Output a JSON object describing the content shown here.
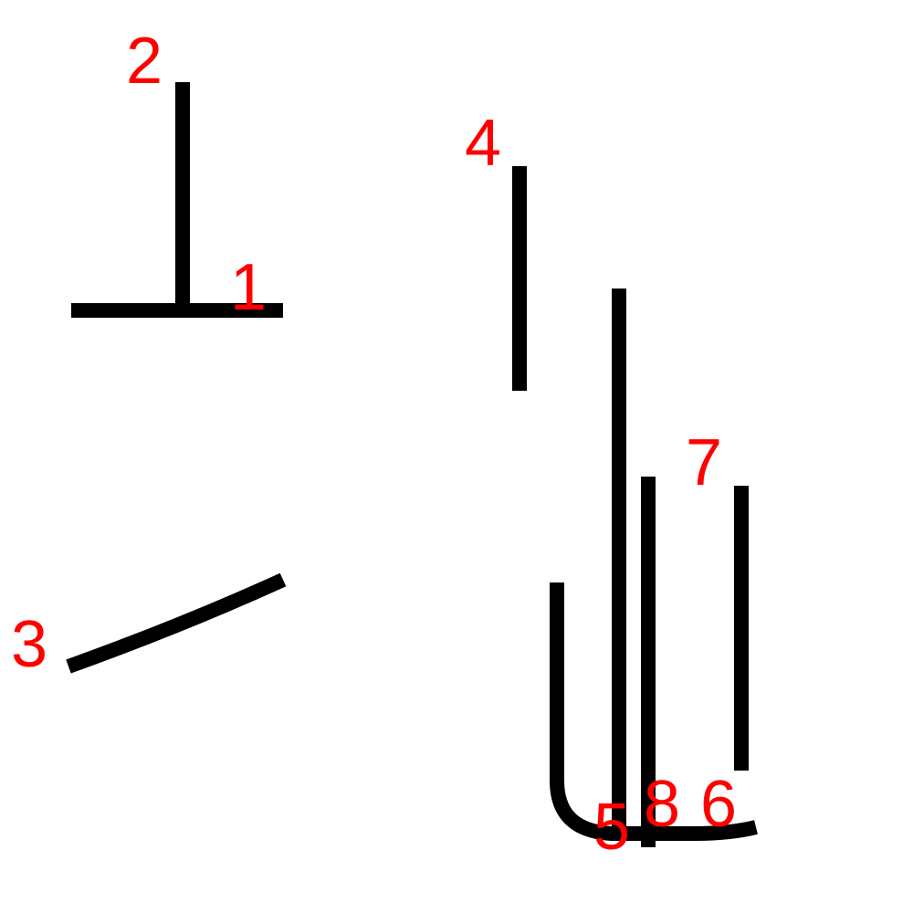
{
  "colors": {
    "stroke": "#000000",
    "label": "#ff0000",
    "background": "#ffffff"
  },
  "strokes": [
    {
      "id": "1",
      "label": "1"
    },
    {
      "id": "2",
      "label": "2"
    },
    {
      "id": "3",
      "label": "3"
    },
    {
      "id": "4",
      "label": "4"
    },
    {
      "id": "5",
      "label": "5"
    },
    {
      "id": "6",
      "label": "6"
    },
    {
      "id": "7",
      "label": "7"
    },
    {
      "id": "8",
      "label": "8"
    }
  ]
}
